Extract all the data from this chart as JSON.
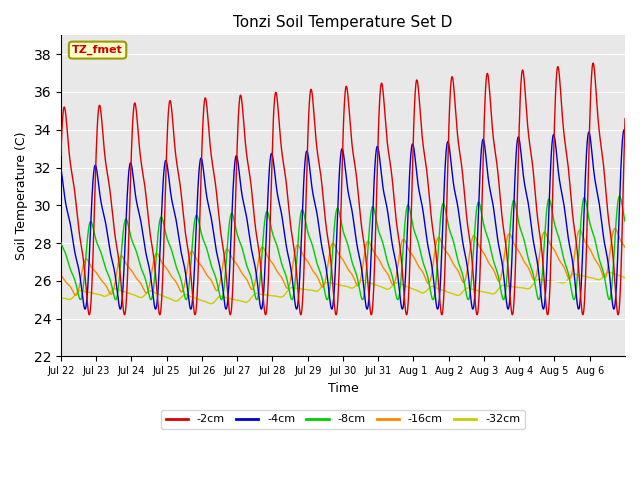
{
  "title": "Tonzi Soil Temperature Set D",
  "xlabel": "Time",
  "ylabel": "Soil Temperature (C)",
  "ylim": [
    22,
    39
  ],
  "yticks": [
    22,
    24,
    26,
    28,
    30,
    32,
    34,
    36,
    38
  ],
  "series_colors": {
    "-2cm": "#dd0000",
    "-4cm": "#0000cc",
    "-8cm": "#00cc00",
    "-16cm": "#ff8800",
    "-32cm": "#cccc00"
  },
  "legend_label": "TZ_fmet",
  "legend_box_facecolor": "#ffffcc",
  "legend_box_edgecolor": "#999900",
  "background_color": "#e8e8e8",
  "n_points": 1600
}
